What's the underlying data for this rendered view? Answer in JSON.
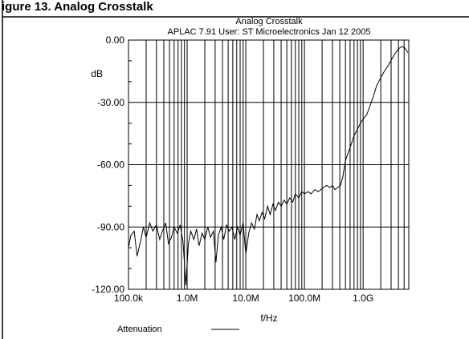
{
  "figure": {
    "caption": "igure 13. Analog Crosstalk"
  },
  "chart_data": {
    "type": "line",
    "title": "Analog Crosstalk",
    "subtitle": "APLAC 7.91 User: ST Microelectronics  Jan 12 2005",
    "xlabel": "f/Hz",
    "ylabel": "dB",
    "x_scale": "log",
    "xlim": [
      100000,
      6000000000
    ],
    "ylim": [
      -120,
      0
    ],
    "x_ticks": [
      {
        "value": 100000,
        "label": "100.0k"
      },
      {
        "value": 1000000,
        "label": "1.0M"
      },
      {
        "value": 10000000,
        "label": "10.0M"
      },
      {
        "value": 100000000,
        "label": "100.0M"
      },
      {
        "value": 1000000000,
        "label": "1.0G"
      }
    ],
    "y_ticks": [
      {
        "value": 0,
        "label": "0.00"
      },
      {
        "value": -30,
        "label": "-30.00"
      },
      {
        "value": -60,
        "label": "-60.00"
      },
      {
        "value": -90,
        "label": "-90.00"
      },
      {
        "value": -120,
        "label": "-120.00"
      }
    ],
    "grid": true,
    "legend": {
      "position": "bottom-left"
    },
    "series": [
      {
        "name": "Attenuation",
        "color": "#000000",
        "x": [
          100000,
          110000,
          125000,
          140000,
          160000,
          180000,
          200000,
          230000,
          260000,
          300000,
          340000,
          380000,
          430000,
          480000,
          540000,
          600000,
          680000,
          760000,
          850000,
          950000,
          1050000,
          1150000,
          1300000,
          1450000,
          1600000,
          1800000,
          2000000,
          2250000,
          2500000,
          2800000,
          3100000,
          3400000,
          3800000,
          4200000,
          4700000,
          5200000,
          5800000,
          6500000,
          7200000,
          8000000,
          9000000,
          10000000,
          11200000,
          12500000,
          14000000,
          15500000,
          17000000,
          19000000,
          21000000,
          23500000,
          26000000,
          29000000,
          32000000,
          36000000,
          40000000,
          45000000,
          50000000,
          56000000,
          63000000,
          70000000,
          80000000,
          90000000,
          100000000,
          115000000,
          130000000,
          150000000,
          170000000,
          190000000,
          210000000,
          240000000,
          270000000,
          300000000,
          330000000,
          370000000,
          410000000,
          450000000,
          500000000,
          560000000,
          630000000,
          700000000,
          800000000,
          900000000,
          1000000000,
          1150000000,
          1300000000,
          1500000000,
          1700000000,
          2000000000,
          2300000000,
          2700000000,
          3100000000,
          3600000000,
          4100000000,
          4600000000,
          5200000000,
          5800000000
        ],
        "values": [
          -100,
          -94,
          -92,
          -104,
          -97,
          -90,
          -95,
          -88,
          -92,
          -89,
          -96,
          -92,
          -88,
          -98,
          -95,
          -90,
          -93,
          -89,
          -97,
          -118,
          -98,
          -92,
          -96,
          -91,
          -99,
          -93,
          -96,
          -90,
          -95,
          -92,
          -107,
          -94,
          -90,
          -96,
          -89,
          -92,
          -90,
          -96,
          -90,
          -94,
          -88,
          -103,
          -93,
          -88,
          -91,
          -84,
          -87,
          -83,
          -86,
          -80,
          -84,
          -79,
          -82,
          -78,
          -80,
          -77,
          -79,
          -76,
          -78,
          -74,
          -76,
          -73,
          -74,
          -73,
          -74,
          -72,
          -73,
          -72,
          -71,
          -70,
          -71,
          -70,
          -72,
          -71,
          -70,
          -66,
          -58,
          -54,
          -50,
          -46,
          -43,
          -40,
          -38,
          -36,
          -32,
          -27,
          -22,
          -18,
          -15,
          -12,
          -9,
          -6,
          -4,
          -3,
          -4,
          -6
        ]
      }
    ]
  }
}
